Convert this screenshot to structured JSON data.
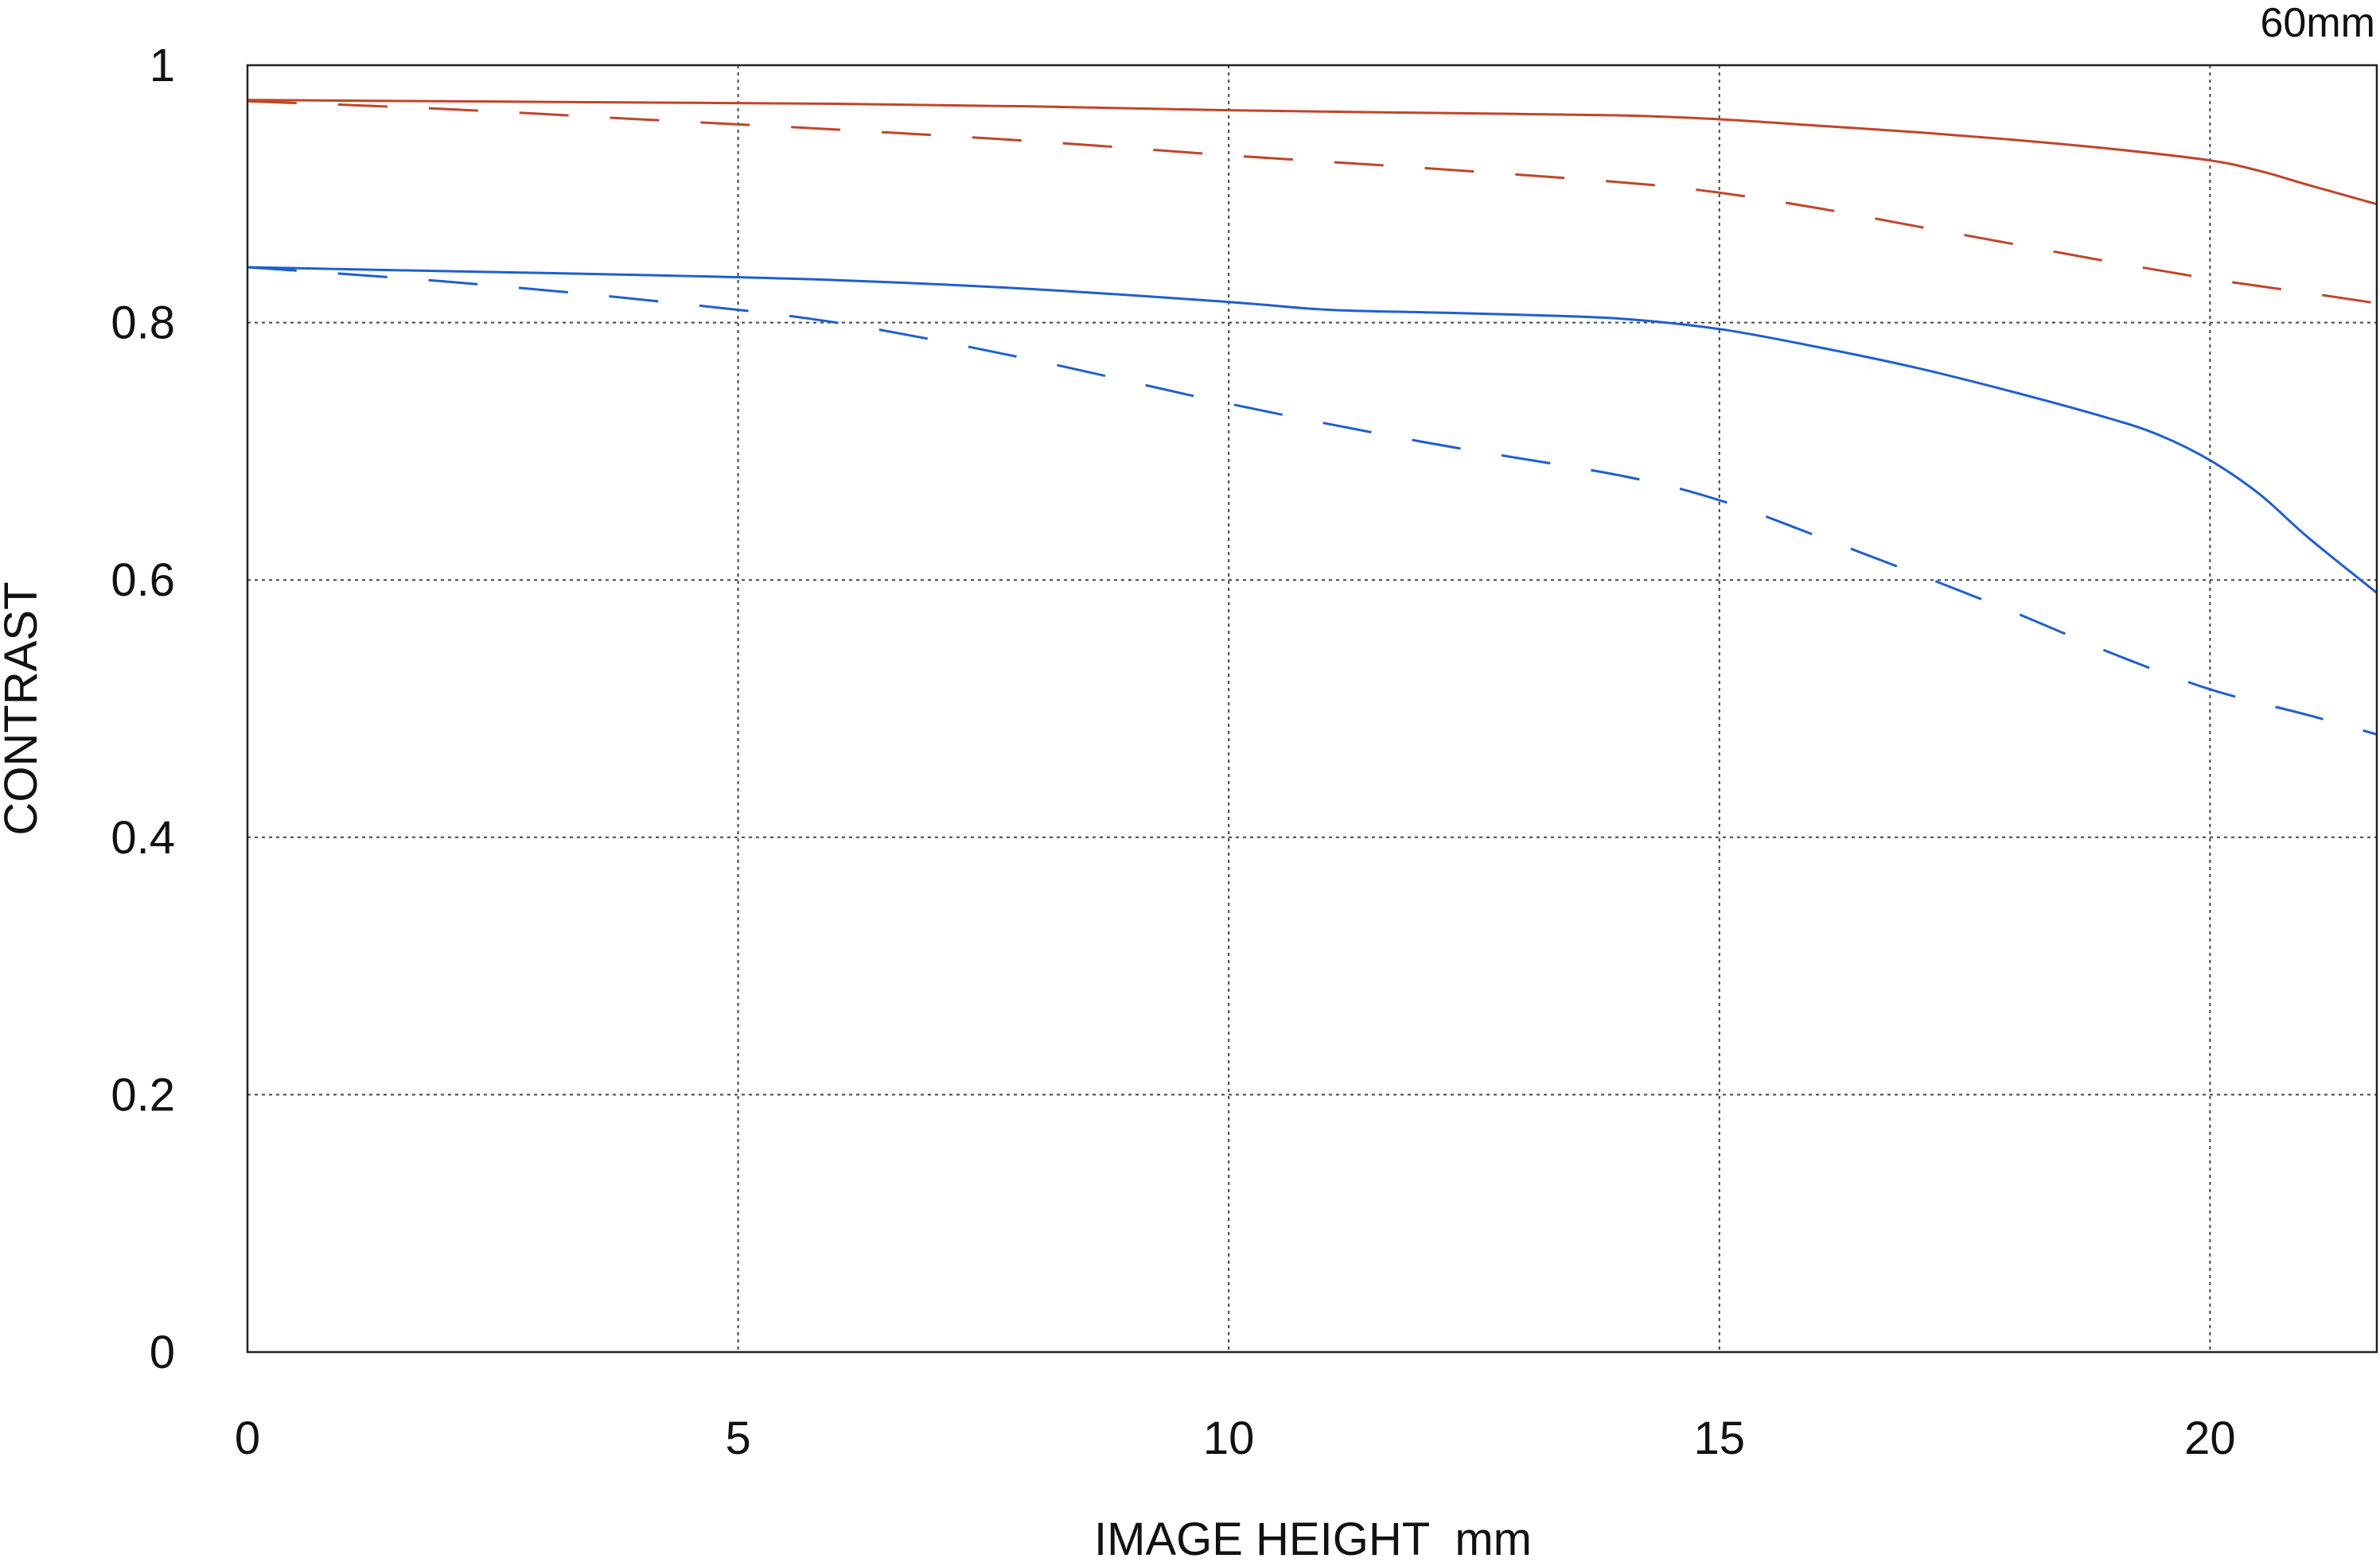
{
  "chart_data": {
    "type": "line",
    "title": "",
    "corner_label": "60mm",
    "xlabel": "IMAGE HEIGHT  mm",
    "ylabel": "CONTRAST",
    "xlim": [
      0,
      21.7
    ],
    "ylim": [
      0,
      1
    ],
    "grid": true,
    "grid_style": "dotted",
    "x_ticks": [
      0,
      5,
      10,
      15,
      20
    ],
    "x_tick_labels": [
      "0",
      "5",
      "10",
      "15",
      "20"
    ],
    "y_ticks": [
      0,
      0.2,
      0.4,
      0.6,
      0.8,
      1
    ],
    "y_tick_labels": [
      "0",
      "0.2",
      "0.4",
      "0.6",
      "0.8",
      "1"
    ],
    "series": [
      {
        "color": "#c0452a",
        "dash": "solid",
        "x": [
          0,
          2,
          4,
          6,
          8,
          10,
          12,
          14,
          15,
          16,
          17,
          18,
          19,
          20,
          20.5,
          21,
          21.7
        ],
        "y": [
          0.973,
          0.972,
          0.971,
          0.97,
          0.968,
          0.965,
          0.963,
          0.961,
          0.958,
          0.953,
          0.948,
          0.942,
          0.935,
          0.926,
          0.918,
          0.907,
          0.892
        ]
      },
      {
        "color": "#c0452a",
        "dash": "dashed",
        "x": [
          0,
          2,
          4,
          6,
          8,
          10,
          12,
          14,
          15,
          16,
          17,
          18,
          19,
          20,
          21,
          21.7
        ],
        "y": [
          0.972,
          0.966,
          0.958,
          0.95,
          0.941,
          0.93,
          0.92,
          0.909,
          0.901,
          0.889,
          0.875,
          0.861,
          0.847,
          0.834,
          0.823,
          0.815
        ]
      },
      {
        "color": "#1f5fcf",
        "dash": "solid",
        "x": [
          0,
          2,
          4,
          6,
          8,
          10,
          11,
          12,
          13,
          14,
          15,
          16,
          17,
          18,
          19,
          19.5,
          20,
          20.5,
          21,
          21.7
        ],
        "y": [
          0.843,
          0.84,
          0.837,
          0.833,
          0.826,
          0.816,
          0.81,
          0.808,
          0.806,
          0.803,
          0.795,
          0.781,
          0.765,
          0.746,
          0.725,
          0.712,
          0.693,
          0.667,
          0.633,
          0.59
        ]
      },
      {
        "color": "#1f5fcf",
        "dash": "dashed",
        "x": [
          0,
          2,
          4,
          6,
          8,
          10,
          12,
          14,
          15,
          16,
          17,
          18,
          19,
          20,
          21,
          21.7
        ],
        "y": [
          0.843,
          0.832,
          0.818,
          0.8,
          0.771,
          0.737,
          0.707,
          0.681,
          0.662,
          0.634,
          0.605,
          0.575,
          0.543,
          0.515,
          0.495,
          0.48
        ]
      }
    ]
  }
}
